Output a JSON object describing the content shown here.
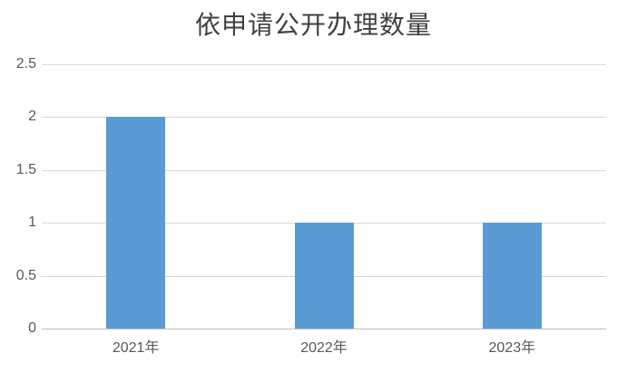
{
  "chart_data": {
    "type": "bar",
    "title": "依申请公开办理数量",
    "categories": [
      "2021年",
      "2022年",
      "2023年"
    ],
    "values": [
      2,
      1,
      1
    ],
    "xlabel": "",
    "ylabel": "",
    "ylim": [
      0,
      2.5
    ],
    "ytick_step": 0.5,
    "yticks": [
      "0",
      "0.5",
      "1",
      "1.5",
      "2",
      "2.5"
    ],
    "grid": true,
    "legend": "none",
    "colors": {
      "bar": "#5B9BD5",
      "gridline": "#D9D9D9",
      "axis_line": "#BFBFBF",
      "tick_label": "#595959",
      "title": "#404040",
      "background": "#FFFFFF"
    }
  }
}
